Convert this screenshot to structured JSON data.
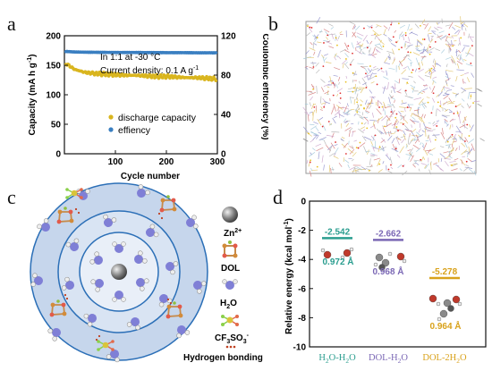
{
  "panels": {
    "a": {
      "letter": "a",
      "annotation_line1": "In 1:1 at -30 °C",
      "annotation_line2": "Current density: 0.1 A g",
      "annotation_line2_sup": "-1",
      "ylabel_left": "Capacity (mA h g",
      "ylabel_left_sup": "-1",
      "ylabel_left_end": ")",
      "ylabel_right": "Coulombic efficiency (%)"
    },
    "b": {
      "letter": "b"
    },
    "c": {
      "letter": "c",
      "legend": {
        "zn": "Zn",
        "zn_sup": "2+",
        "dol": "DOL",
        "h2o": "H",
        "h2o_sub": "2",
        "h2o_end": "O",
        "cf3so3": "CF",
        "cf3so3_sub1": "3",
        "cf3so3_mid": "SO",
        "cf3so3_sub2": "3",
        "cf3so3_sup": "-",
        "hbond": "Hydrogen bonding"
      },
      "colors": {
        "outer_ring": "#c6d6ec",
        "middle_ring": "#d9e4f3",
        "inner_ring": "#e9eff8",
        "ring_edge": "#2b6fb7"
      }
    },
    "d": {
      "letter": "d",
      "ylabel": "Relative energy (kcal mol",
      "ylabel_sup": "-1",
      "ylabel_end": ")",
      "bonds": [
        "0.972 Å",
        "0.968 Å",
        "0.964 Å"
      ]
    }
  },
  "chart_data": [
    {
      "type": "scatter",
      "panel": "a",
      "xlabel": "Cycle number",
      "xlim": [
        0,
        300
      ],
      "xticks": [
        100,
        200,
        300
      ],
      "ylim_left": [
        0,
        200
      ],
      "yticks_left": [
        0,
        50,
        100,
        150,
        200
      ],
      "ylim_right": [
        0,
        120
      ],
      "yticks_right": [
        0,
        40,
        80,
        120
      ],
      "legend_position": "lower-center",
      "series": [
        {
          "name": "discharge capacity",
          "axis": "left",
          "color": "#d9b51e",
          "x": [
            5,
            20,
            40,
            60,
            80,
            100,
            120,
            140,
            160,
            180,
            200,
            220,
            240,
            260,
            280,
            295
          ],
          "values": [
            152,
            143,
            138,
            136,
            135,
            134,
            133,
            133,
            132,
            131,
            131,
            130,
            129,
            129,
            128,
            127
          ]
        },
        {
          "name": "effiency",
          "axis": "right",
          "color": "#3a7fc1",
          "x": [
            5,
            20,
            40,
            60,
            80,
            100,
            120,
            140,
            160,
            180,
            200,
            220,
            240,
            260,
            280,
            295
          ],
          "values": [
            104,
            103.5,
            103.3,
            103.2,
            103.1,
            103,
            103,
            103,
            102.9,
            102.9,
            102.8,
            102.8,
            102.8,
            102.7,
            102.7,
            102.7
          ]
        }
      ]
    },
    {
      "type": "bar",
      "panel": "d",
      "categories": [
        "H2O-H2O",
        "DOL-H2O",
        "DOL-2H2O"
      ],
      "category_labels": [
        {
          "main": "H",
          "sub": "2",
          "rest": "O-H",
          "sub2": "2",
          "end": "O"
        },
        {
          "main": "DOL-H",
          "sub": "2",
          "rest": "O",
          "sub2": "",
          "end": ""
        },
        {
          "main": "DOL-2H",
          "sub": "2",
          "rest": "O",
          "sub2": "",
          "end": ""
        }
      ],
      "values": [
        -2.542,
        -2.662,
        -5.278
      ],
      "value_labels": [
        "-2.542",
        "-2.662",
        "-5.278"
      ],
      "colors": [
        "#2a9d8f",
        "#7b68b5",
        "#d9a21b"
      ],
      "ylim": [
        -10,
        0
      ],
      "yticks": [
        0,
        -2,
        -4,
        -6,
        -8,
        -10
      ]
    }
  ]
}
